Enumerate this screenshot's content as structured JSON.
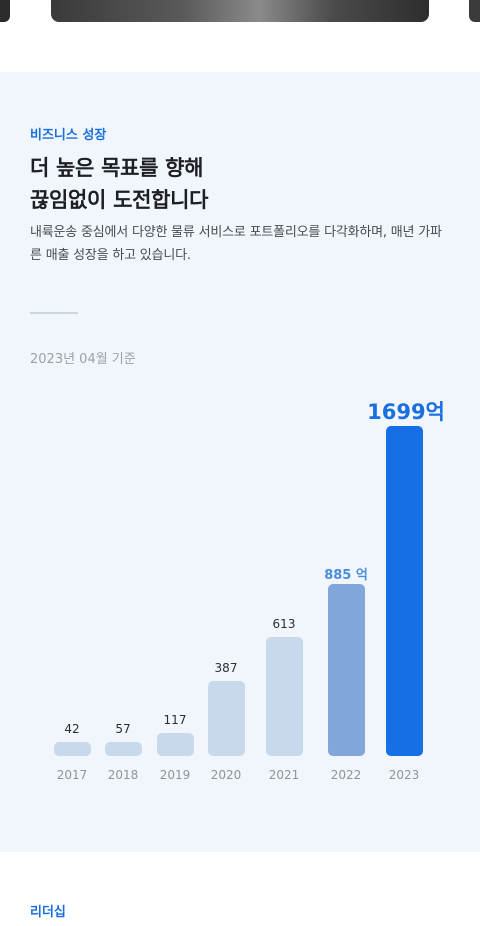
{
  "growth_section": {
    "eyebrow": "비즈니스 성장",
    "headline_line1": "더 높은 목표를 향해",
    "headline_line2": "끊임없이 도전합니다",
    "description": "내륙운송 중심에서 다양한 물류 서비스로 포트폴리오를 다각화하며, 매년 가파른 매출 성장을 하고 있습니다.",
    "basis_date": "2023년 04월 기준"
  },
  "chart_data": {
    "type": "bar",
    "categories": [
      "2017",
      "2018",
      "2019",
      "2020",
      "2021",
      "2022",
      "2023"
    ],
    "values": [
      42,
      57,
      117,
      387,
      613,
      885,
      1699
    ],
    "value_labels": [
      "42",
      "57",
      "117",
      "387",
      "613",
      "885 억",
      "1699억"
    ],
    "colors": [
      "#c9d9ec",
      "#c9d9ec",
      "#c9d9ec",
      "#c9d9ec",
      "#c9d9ec",
      "#81a6da",
      "#166fe5"
    ]
  },
  "leadership_section": {
    "eyebrow": "리더십"
  }
}
